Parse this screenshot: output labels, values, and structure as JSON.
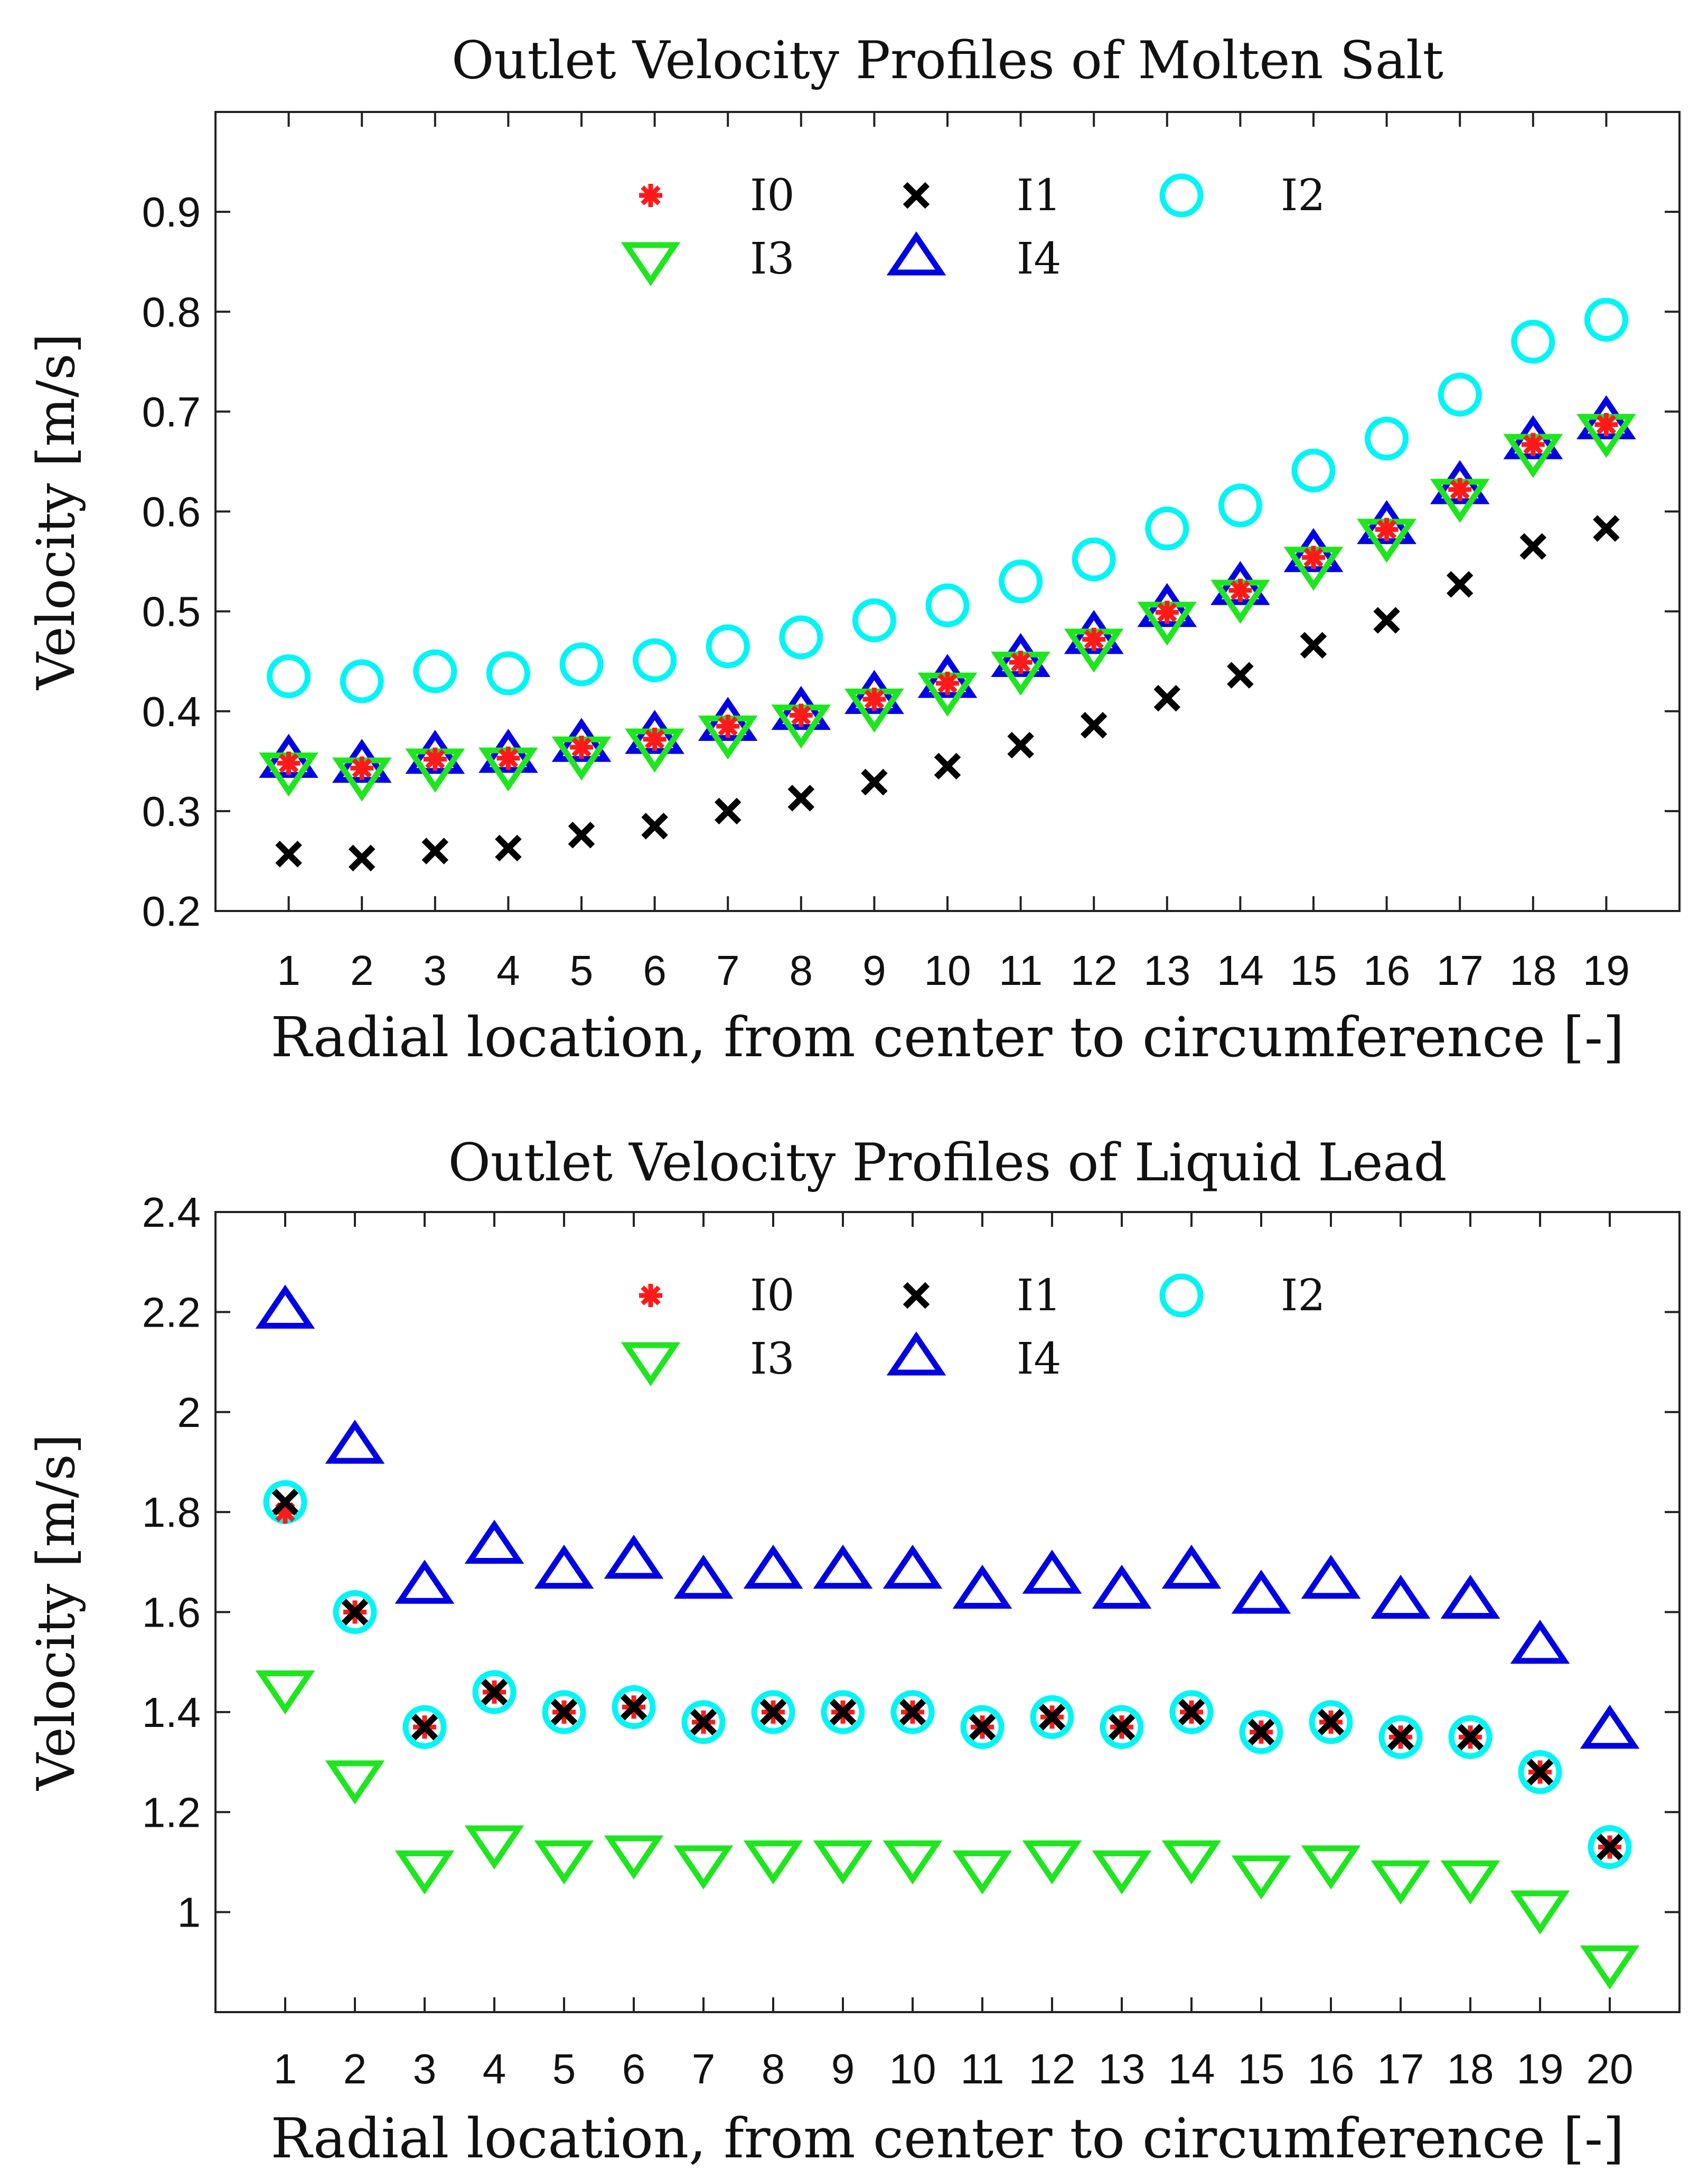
{
  "colors": {
    "I0": "#ff1a1a",
    "I1": "#000000",
    "I2": "#00f5f5",
    "I3": "#1ee61e",
    "I4": "#0000e6"
  },
  "chart_data": [
    {
      "type": "scatter",
      "title": "Outlet Velocity Profiles of Molten Salt",
      "xlabel": "Radial location, from center to circumference [-]",
      "ylabel": "Velocity [m/s]",
      "xlim": [
        0,
        20
      ],
      "ylim": [
        0.2,
        1.0
      ],
      "xticks": [
        1,
        2,
        3,
        4,
        5,
        6,
        7,
        8,
        9,
        10,
        11,
        12,
        13,
        14,
        15,
        16,
        17,
        18,
        19
      ],
      "yticks": [
        0.2,
        0.3,
        0.4,
        0.5,
        0.6,
        0.7,
        0.8,
        0.9
      ],
      "legend_position": "top-center",
      "series": [
        {
          "name": "I0",
          "marker": "asterisk",
          "x": [
            1,
            2,
            3,
            4,
            5,
            6,
            7,
            8,
            9,
            10,
            11,
            12,
            13,
            14,
            15,
            16,
            17,
            18,
            19
          ],
          "values": [
            0.348,
            0.343,
            0.352,
            0.353,
            0.364,
            0.372,
            0.385,
            0.396,
            0.412,
            0.428,
            0.449,
            0.472,
            0.499,
            0.521,
            0.554,
            0.582,
            0.622,
            0.667,
            0.687
          ]
        },
        {
          "name": "I1",
          "marker": "x",
          "x": [
            1,
            2,
            3,
            4,
            5,
            6,
            7,
            8,
            9,
            10,
            11,
            12,
            13,
            14,
            15,
            16,
            17,
            18,
            19
          ],
          "values": [
            0.257,
            0.253,
            0.26,
            0.263,
            0.276,
            0.285,
            0.3,
            0.313,
            0.329,
            0.345,
            0.366,
            0.386,
            0.413,
            0.436,
            0.466,
            0.491,
            0.527,
            0.565,
            0.583
          ]
        },
        {
          "name": "I2",
          "marker": "circle",
          "x": [
            1,
            2,
            3,
            4,
            5,
            6,
            7,
            8,
            9,
            10,
            11,
            12,
            13,
            14,
            15,
            16,
            17,
            18,
            19
          ],
          "values": [
            0.435,
            0.43,
            0.44,
            0.438,
            0.447,
            0.451,
            0.465,
            0.474,
            0.491,
            0.506,
            0.53,
            0.552,
            0.583,
            0.606,
            0.641,
            0.673,
            0.717,
            0.77,
            0.792
          ]
        },
        {
          "name": "I3",
          "marker": "triangle-down",
          "x": [
            1,
            2,
            3,
            4,
            5,
            6,
            7,
            8,
            9,
            10,
            11,
            12,
            13,
            14,
            15,
            16,
            17,
            18,
            19
          ],
          "values": [
            0.342,
            0.337,
            0.346,
            0.347,
            0.358,
            0.366,
            0.379,
            0.39,
            0.406,
            0.422,
            0.443,
            0.466,
            0.493,
            0.515,
            0.548,
            0.576,
            0.616,
            0.661,
            0.681
          ]
        },
        {
          "name": "I4",
          "marker": "triangle-up",
          "x": [
            1,
            2,
            3,
            4,
            5,
            6,
            7,
            8,
            9,
            10,
            11,
            12,
            13,
            14,
            15,
            16,
            17,
            18,
            19
          ],
          "values": [
            0.35,
            0.345,
            0.354,
            0.355,
            0.366,
            0.374,
            0.387,
            0.398,
            0.414,
            0.43,
            0.451,
            0.474,
            0.501,
            0.523,
            0.556,
            0.584,
            0.624,
            0.669,
            0.689
          ]
        }
      ]
    },
    {
      "type": "scatter",
      "title": "Outlet Velocity Profiles of Liquid Lead",
      "xlabel": "Radial location, from center to circumference [-]",
      "ylabel": "Velocity [m/s]",
      "xlim": [
        0,
        21
      ],
      "ylim": [
        0.8,
        2.4
      ],
      "xticks": [
        1,
        2,
        3,
        4,
        5,
        6,
        7,
        8,
        9,
        10,
        11,
        12,
        13,
        14,
        15,
        16,
        17,
        18,
        19,
        20
      ],
      "yticks": [
        1,
        1.2,
        1.4,
        1.6,
        1.8,
        2,
        2.2,
        2.4
      ],
      "legend_position": "top-center",
      "series": [
        {
          "name": "I0",
          "marker": "asterisk",
          "x": [
            1,
            2,
            3,
            4,
            5,
            6,
            7,
            8,
            9,
            10,
            11,
            12,
            13,
            14,
            15,
            16,
            17,
            18,
            19,
            20
          ],
          "values": [
            1.8,
            1.6,
            1.37,
            1.44,
            1.4,
            1.41,
            1.38,
            1.4,
            1.4,
            1.4,
            1.37,
            1.39,
            1.37,
            1.4,
            1.36,
            1.38,
            1.35,
            1.35,
            1.28,
            1.13
          ]
        },
        {
          "name": "I1",
          "marker": "x",
          "x": [
            1,
            2,
            3,
            4,
            5,
            6,
            7,
            8,
            9,
            10,
            11,
            12,
            13,
            14,
            15,
            16,
            17,
            18,
            19,
            20
          ],
          "values": [
            1.82,
            1.6,
            1.37,
            1.44,
            1.4,
            1.41,
            1.38,
            1.4,
            1.4,
            1.4,
            1.37,
            1.39,
            1.37,
            1.4,
            1.36,
            1.38,
            1.35,
            1.35,
            1.28,
            1.13
          ]
        },
        {
          "name": "I2",
          "marker": "circle",
          "x": [
            1,
            2,
            3,
            4,
            5,
            6,
            7,
            8,
            9,
            10,
            11,
            12,
            13,
            14,
            15,
            16,
            17,
            18,
            19,
            20
          ],
          "values": [
            1.82,
            1.6,
            1.37,
            1.44,
            1.4,
            1.41,
            1.38,
            1.4,
            1.4,
            1.4,
            1.37,
            1.39,
            1.37,
            1.4,
            1.36,
            1.38,
            1.35,
            1.35,
            1.28,
            1.13
          ]
        },
        {
          "name": "I3",
          "marker": "triangle-down",
          "x": [
            1,
            2,
            3,
            4,
            5,
            6,
            7,
            8,
            9,
            10,
            11,
            12,
            13,
            14,
            15,
            16,
            17,
            18,
            19,
            20
          ],
          "values": [
            1.45,
            1.27,
            1.09,
            1.14,
            1.11,
            1.12,
            1.1,
            1.11,
            1.11,
            1.11,
            1.09,
            1.11,
            1.09,
            1.11,
            1.08,
            1.1,
            1.07,
            1.07,
            1.01,
            0.9
          ]
        },
        {
          "name": "I4",
          "marker": "triangle-up",
          "x": [
            1,
            2,
            3,
            4,
            5,
            6,
            7,
            8,
            9,
            10,
            11,
            12,
            13,
            14,
            15,
            16,
            17,
            18,
            19,
            20
          ],
          "values": [
            2.2,
            1.93,
            1.65,
            1.73,
            1.68,
            1.7,
            1.66,
            1.68,
            1.68,
            1.68,
            1.64,
            1.67,
            1.64,
            1.68,
            1.63,
            1.66,
            1.62,
            1.62,
            1.53,
            1.36
          ]
        }
      ]
    }
  ]
}
